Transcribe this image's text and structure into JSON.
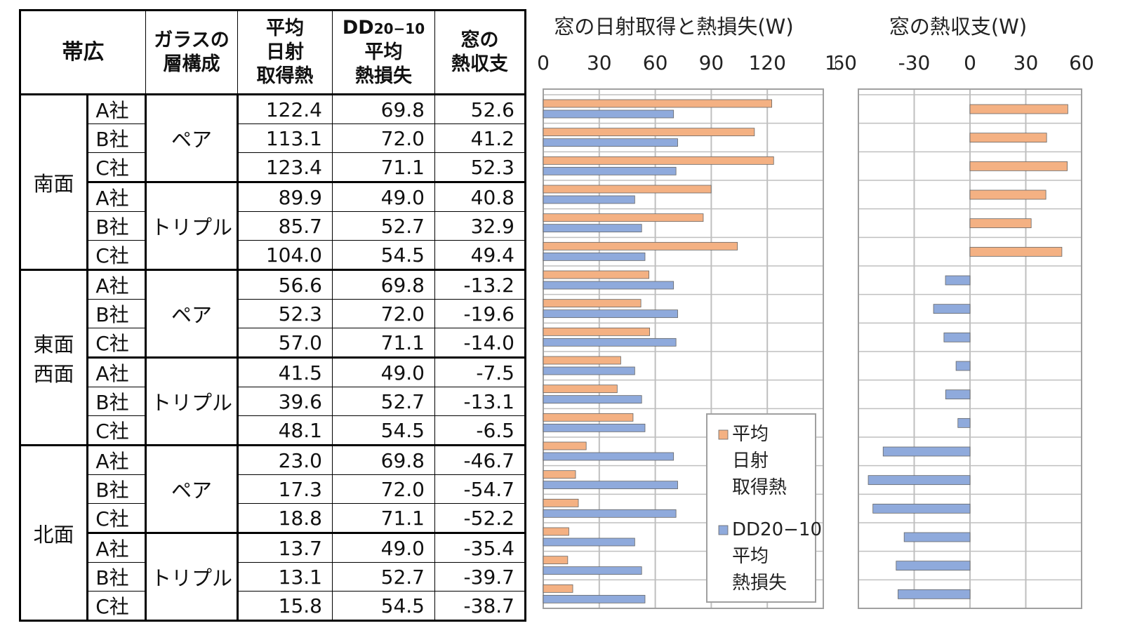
{
  "table": {
    "header": {
      "region": "帯広",
      "glass_line1": "ガラスの",
      "glass_line2": "層構成",
      "solar_line1": "平均",
      "solar_line2": "日射",
      "solar_line3": "取得熱",
      "loss_line1_main": "DD",
      "loss_line1_sub": "20−10",
      "loss_line2": "平均",
      "loss_line3": "熱損失",
      "net_line1": "窓の",
      "net_line2": "熱収支"
    },
    "faces": [
      "南面",
      "東面\n西面",
      "北面"
    ],
    "face_labels": {
      "south": "南面",
      "eastwest_1": "東面",
      "eastwest_2": "西面",
      "north": "北面"
    },
    "glass_types": {
      "pair": "ペア",
      "triple": "トリプル"
    },
    "rows": [
      {
        "company": "A社",
        "solar": "122.4",
        "loss": "69.8",
        "net": "52.6"
      },
      {
        "company": "B社",
        "solar": "113.1",
        "loss": "72.0",
        "net": "41.2"
      },
      {
        "company": "C社",
        "solar": "123.4",
        "loss": "71.1",
        "net": "52.3"
      },
      {
        "company": "A社",
        "solar": "89.9",
        "loss": "49.0",
        "net": "40.8"
      },
      {
        "company": "B社",
        "solar": "85.7",
        "loss": "52.7",
        "net": "32.9"
      },
      {
        "company": "C社",
        "solar": "104.0",
        "loss": "54.5",
        "net": "49.4"
      },
      {
        "company": "A社",
        "solar": "56.6",
        "loss": "69.8",
        "net": "-13.2"
      },
      {
        "company": "B社",
        "solar": "52.3",
        "loss": "72.0",
        "net": "-19.6"
      },
      {
        "company": "C社",
        "solar": "57.0",
        "loss": "71.1",
        "net": "-14.0"
      },
      {
        "company": "A社",
        "solar": "41.5",
        "loss": "49.0",
        "net": "-7.5"
      },
      {
        "company": "B社",
        "solar": "39.6",
        "loss": "52.7",
        "net": "-13.1"
      },
      {
        "company": "C社",
        "solar": "48.1",
        "loss": "54.5",
        "net": "-6.5"
      },
      {
        "company": "A社",
        "solar": "23.0",
        "loss": "69.8",
        "net": "-46.7"
      },
      {
        "company": "B社",
        "solar": "17.3",
        "loss": "72.0",
        "net": "-54.7"
      },
      {
        "company": "C社",
        "solar": "18.8",
        "loss": "71.1",
        "net": "-52.2"
      },
      {
        "company": "A社",
        "solar": "13.7",
        "loss": "49.0",
        "net": "-35.4"
      },
      {
        "company": "B社",
        "solar": "13.1",
        "loss": "52.7",
        "net": "-39.7"
      },
      {
        "company": "C社",
        "solar": "15.8",
        "loss": "54.5",
        "net": "-38.7"
      }
    ]
  },
  "colors": {
    "orange": "#f4b183",
    "blue": "#8faadc",
    "grid": "#bfbfbf"
  },
  "chart_data": [
    {
      "type": "bar",
      "orientation": "horizontal",
      "title": "窓の日射取得と熱損失(W)",
      "xlim": [
        0,
        150
      ],
      "x_ticks": [
        "0",
        "30",
        "60",
        "90",
        "120",
        "150"
      ],
      "grid": true,
      "legend_position": "bottom-right",
      "series": [
        {
          "name": "平均日射取得熱",
          "legend_lines": [
            "平均",
            "日射",
            "取得熱"
          ],
          "color": "#f4b183",
          "values": [
            122.4,
            113.1,
            123.4,
            89.9,
            85.7,
            104.0,
            56.6,
            52.3,
            57.0,
            41.5,
            39.6,
            48.1,
            23.0,
            17.3,
            18.8,
            13.7,
            13.1,
            15.8
          ]
        },
        {
          "name": "DD20−10平均熱損失",
          "legend_lines": [
            "DD20−10",
            "平均",
            "熱損失"
          ],
          "color": "#8faadc",
          "values": [
            69.8,
            72.0,
            71.1,
            49.0,
            52.7,
            54.5,
            69.8,
            72.0,
            71.1,
            49.0,
            52.7,
            54.5,
            69.8,
            72.0,
            71.1,
            49.0,
            52.7,
            54.5
          ]
        }
      ]
    },
    {
      "type": "bar",
      "orientation": "horizontal",
      "title": "窓の熱収支(W)",
      "xlim": [
        -60,
        60
      ],
      "x_ticks": [
        "-60",
        "-30",
        "0",
        "30",
        "60"
      ],
      "grid": true,
      "series": [
        {
          "name": "窓の熱収支",
          "values": [
            52.6,
            41.2,
            52.3,
            40.8,
            32.9,
            49.4,
            -13.2,
            -19.6,
            -14.0,
            -7.5,
            -13.1,
            -6.5,
            -46.7,
            -54.7,
            -52.2,
            -35.4,
            -39.7,
            -38.7
          ]
        }
      ]
    }
  ]
}
